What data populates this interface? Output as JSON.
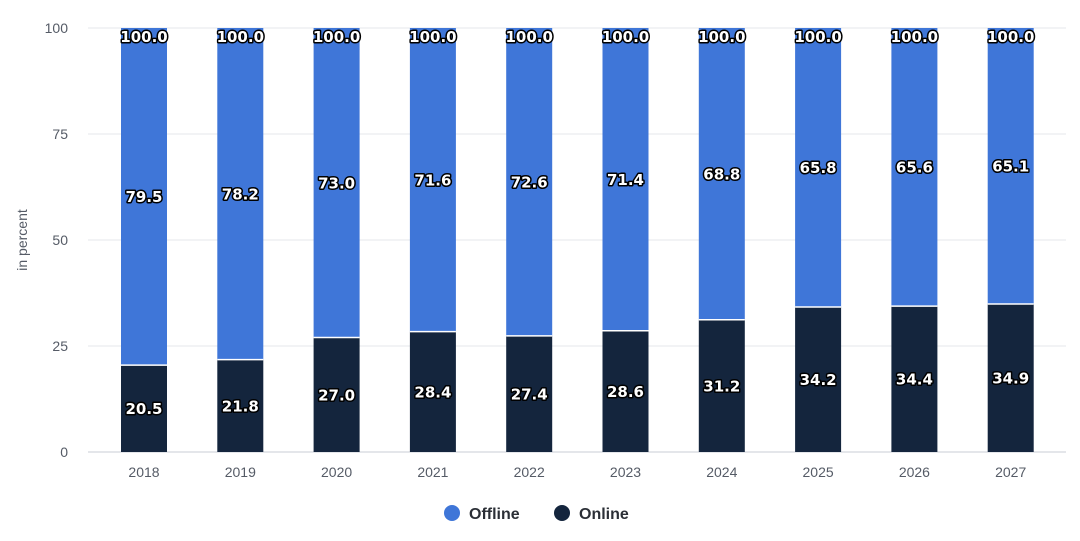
{
  "chart_data": {
    "type": "bar",
    "stacked": true,
    "categories": [
      "2018",
      "2019",
      "2020",
      "2021",
      "2022",
      "2023",
      "2024",
      "2025",
      "2026",
      "2027"
    ],
    "series": [
      {
        "name": "Online",
        "color": "#14253d",
        "values": [
          20.5,
          21.8,
          27.0,
          28.4,
          27.4,
          28.6,
          31.2,
          34.2,
          34.4,
          34.9
        ]
      },
      {
        "name": "Offline",
        "color": "#3f76d8",
        "values": [
          79.5,
          78.2,
          73.0,
          71.6,
          72.6,
          71.4,
          68.8,
          65.8,
          65.6,
          65.1
        ]
      }
    ],
    "totals": [
      100.0,
      100.0,
      100.0,
      100.0,
      100.0,
      100.0,
      100.0,
      100.0,
      100.0,
      100.0
    ],
    "ylabel": "in percent",
    "xlabel": "",
    "ylim": [
      0,
      100
    ],
    "yticks": [
      0,
      25,
      50,
      75,
      100
    ],
    "grid": true,
    "legend": {
      "position": "bottom-center",
      "entries": [
        "Offline",
        "Online"
      ]
    },
    "label_decimals": 1
  }
}
